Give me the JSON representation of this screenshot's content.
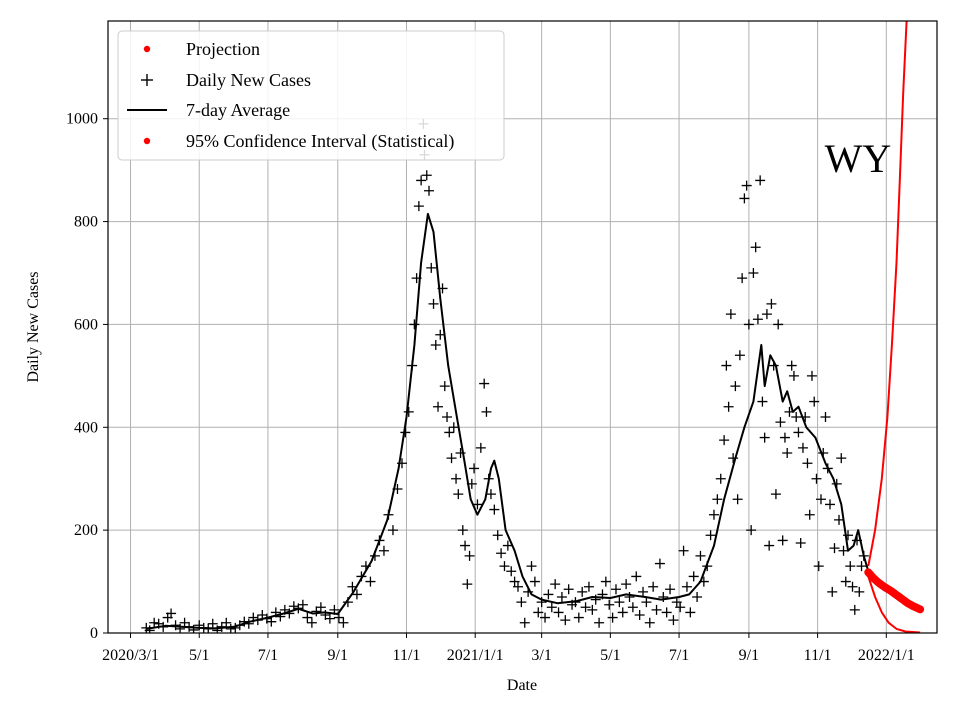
{
  "chart_data": {
    "type": "line",
    "state_label": "WY",
    "xlabel": "Date",
    "ylabel": "Daily New Cases",
    "x_ticks": [
      "2020-03-01",
      "2020-05-01",
      "2020-07-01",
      "2020-09-01",
      "2020-11-01",
      "2021-01-01",
      "2021-03-01",
      "2021-05-01",
      "2021-07-01",
      "2021-09-01",
      "2021-11-01",
      "2022-01-01"
    ],
    "x_tick_labels": [
      "2020/3/1",
      "5/1",
      "7/1",
      "9/1",
      "11/1",
      "2021/1/1",
      "3/1",
      "5/1",
      "7/1",
      "9/1",
      "11/1",
      "2022/1/1"
    ],
    "y_ticks": [
      0,
      200,
      400,
      600,
      800,
      1000
    ],
    "xlim": [
      "2020-02-10",
      "2022-02-15"
    ],
    "ylim": [
      0,
      1190
    ],
    "grid": true,
    "legend_position": "top-left",
    "legend": [
      {
        "label": "Projection",
        "marker": "dot",
        "color": "#ff0000"
      },
      {
        "label": "Daily New Cases",
        "marker": "plus",
        "color": "#000000"
      },
      {
        "label": "7-day Average",
        "marker": "line",
        "color": "#000000"
      },
      {
        "label": "95% Confidence Interval (Statistical)",
        "marker": "dot",
        "color": "#ff0000"
      }
    ],
    "series": [
      {
        "name": "7-day Average",
        "color": "#000000",
        "points": [
          [
            "2020-03-15",
            8
          ],
          [
            "2020-04-01",
            14
          ],
          [
            "2020-04-15",
            12
          ],
          [
            "2020-05-01",
            10
          ],
          [
            "2020-05-15",
            9
          ],
          [
            "2020-06-01",
            12
          ],
          [
            "2020-06-15",
            22
          ],
          [
            "2020-07-01",
            30
          ],
          [
            "2020-07-15",
            38
          ],
          [
            "2020-07-28",
            47
          ],
          [
            "2020-08-10",
            38
          ],
          [
            "2020-08-20",
            40
          ],
          [
            "2020-09-01",
            37
          ],
          [
            "2020-09-15",
            80
          ],
          [
            "2020-10-01",
            140
          ],
          [
            "2020-10-15",
            220
          ],
          [
            "2020-10-25",
            320
          ],
          [
            "2020-11-01",
            420
          ],
          [
            "2020-11-08",
            560
          ],
          [
            "2020-11-14",
            720
          ],
          [
            "2020-11-20",
            815
          ],
          [
            "2020-11-25",
            780
          ],
          [
            "2020-12-01",
            650
          ],
          [
            "2020-12-08",
            520
          ],
          [
            "2020-12-15",
            430
          ],
          [
            "2020-12-22",
            340
          ],
          [
            "2020-12-28",
            260
          ],
          [
            "2021-01-03",
            230
          ],
          [
            "2021-01-10",
            260
          ],
          [
            "2021-01-15",
            320
          ],
          [
            "2021-01-18",
            335
          ],
          [
            "2021-01-22",
            300
          ],
          [
            "2021-01-28",
            200
          ],
          [
            "2021-02-05",
            160
          ],
          [
            "2021-02-12",
            110
          ],
          [
            "2021-02-20",
            75
          ],
          [
            "2021-03-01",
            65
          ],
          [
            "2021-03-15",
            58
          ],
          [
            "2021-04-01",
            62
          ],
          [
            "2021-04-15",
            70
          ],
          [
            "2021-05-01",
            68
          ],
          [
            "2021-05-15",
            75
          ],
          [
            "2021-06-01",
            70
          ],
          [
            "2021-06-15",
            65
          ],
          [
            "2021-07-01",
            70
          ],
          [
            "2021-07-10",
            75
          ],
          [
            "2021-07-20",
            100
          ],
          [
            "2021-08-01",
            170
          ],
          [
            "2021-08-10",
            260
          ],
          [
            "2021-08-20",
            340
          ],
          [
            "2021-08-28",
            400
          ],
          [
            "2021-09-05",
            450
          ],
          [
            "2021-09-12",
            560
          ],
          [
            "2021-09-15",
            480
          ],
          [
            "2021-09-20",
            540
          ],
          [
            "2021-09-25",
            520
          ],
          [
            "2021-10-01",
            450
          ],
          [
            "2021-10-05",
            470
          ],
          [
            "2021-10-10",
            430
          ],
          [
            "2021-10-15",
            440
          ],
          [
            "2021-10-22",
            400
          ],
          [
            "2021-10-30",
            380
          ],
          [
            "2021-11-08",
            330
          ],
          [
            "2021-11-15",
            300
          ],
          [
            "2021-11-22",
            250
          ],
          [
            "2021-11-28",
            160
          ],
          [
            "2021-12-03",
            170
          ],
          [
            "2021-12-07",
            200
          ],
          [
            "2021-12-12",
            150
          ],
          [
            "2021-12-16",
            120
          ]
        ]
      },
      {
        "name": "Projection",
        "color": "#ff0000",
        "points": [
          [
            "2021-12-16",
            118
          ],
          [
            "2021-12-20",
            108
          ],
          [
            "2021-12-25",
            98
          ],
          [
            "2021-12-30",
            90
          ],
          [
            "2022-01-05",
            82
          ],
          [
            "2022-01-10",
            74
          ],
          [
            "2022-01-15",
            66
          ],
          [
            "2022-01-20",
            58
          ],
          [
            "2022-01-25",
            52
          ],
          [
            "2022-01-31",
            46
          ]
        ]
      },
      {
        "name": "95% Confidence Interval (Statistical) upper",
        "color": "#ff0000",
        "points": [
          [
            "2021-12-16",
            130
          ],
          [
            "2021-12-22",
            200
          ],
          [
            "2021-12-28",
            300
          ],
          [
            "2022-01-02",
            420
          ],
          [
            "2022-01-06",
            560
          ],
          [
            "2022-01-10",
            720
          ],
          [
            "2022-01-13",
            880
          ],
          [
            "2022-01-16",
            1050
          ],
          [
            "2022-01-19",
            1190
          ]
        ]
      },
      {
        "name": "95% Confidence Interval (Statistical) lower",
        "color": "#ff0000",
        "points": [
          [
            "2021-12-16",
            110
          ],
          [
            "2021-12-22",
            70
          ],
          [
            "2021-12-28",
            40
          ],
          [
            "2022-01-03",
            20
          ],
          [
            "2022-01-10",
            8
          ],
          [
            "2022-01-18",
            3
          ],
          [
            "2022-01-31",
            1
          ]
        ]
      }
    ],
    "daily_cases": [
      [
        "2020-03-15",
        10
      ],
      [
        "2020-03-18",
        5
      ],
      [
        "2020-03-22",
        20
      ],
      [
        "2020-03-26",
        18
      ],
      [
        "2020-03-30",
        12
      ],
      [
        "2020-04-03",
        30
      ],
      [
        "2020-04-06",
        38
      ],
      [
        "2020-04-10",
        15
      ],
      [
        "2020-04-14",
        8
      ],
      [
        "2020-04-18",
        20
      ],
      [
        "2020-04-22",
        12
      ],
      [
        "2020-04-26",
        6
      ],
      [
        "2020-05-01",
        15
      ],
      [
        "2020-05-05",
        10
      ],
      [
        "2020-05-09",
        8
      ],
      [
        "2020-05-13",
        18
      ],
      [
        "2020-05-17",
        5
      ],
      [
        "2020-05-21",
        12
      ],
      [
        "2020-05-25",
        20
      ],
      [
        "2020-05-29",
        8
      ],
      [
        "2020-06-02",
        10
      ],
      [
        "2020-06-06",
        15
      ],
      [
        "2020-06-10",
        22
      ],
      [
        "2020-06-14",
        18
      ],
      [
        "2020-06-18",
        30
      ],
      [
        "2020-06-22",
        25
      ],
      [
        "2020-06-26",
        35
      ],
      [
        "2020-06-30",
        28
      ],
      [
        "2020-07-04",
        22
      ],
      [
        "2020-07-08",
        40
      ],
      [
        "2020-07-12",
        32
      ],
      [
        "2020-07-16",
        45
      ],
      [
        "2020-07-20",
        38
      ],
      [
        "2020-07-24",
        52
      ],
      [
        "2020-07-28",
        48
      ],
      [
        "2020-08-01",
        55
      ],
      [
        "2020-08-05",
        30
      ],
      [
        "2020-08-09",
        20
      ],
      [
        "2020-08-13",
        42
      ],
      [
        "2020-08-17",
        50
      ],
      [
        "2020-08-21",
        35
      ],
      [
        "2020-08-25",
        28
      ],
      [
        "2020-08-29",
        45
      ],
      [
        "2020-09-02",
        30
      ],
      [
        "2020-09-06",
        20
      ],
      [
        "2020-09-10",
        60
      ],
      [
        "2020-09-14",
        90
      ],
      [
        "2020-09-18",
        75
      ],
      [
        "2020-09-22",
        110
      ],
      [
        "2020-09-26",
        130
      ],
      [
        "2020-09-30",
        100
      ],
      [
        "2020-10-04",
        150
      ],
      [
        "2020-10-08",
        180
      ],
      [
        "2020-10-12",
        160
      ],
      [
        "2020-10-16",
        230
      ],
      [
        "2020-10-20",
        200
      ],
      [
        "2020-10-24",
        280
      ],
      [
        "2020-10-28",
        330
      ],
      [
        "2020-10-31",
        390
      ],
      [
        "2020-11-03",
        430
      ],
      [
        "2020-11-06",
        520
      ],
      [
        "2020-11-08",
        600
      ],
      [
        "2020-11-10",
        690
      ],
      [
        "2020-11-12",
        830
      ],
      [
        "2020-11-14",
        880
      ],
      [
        "2020-11-16",
        990
      ],
      [
        "2020-11-17",
        930
      ],
      [
        "2020-11-19",
        890
      ],
      [
        "2020-11-21",
        860
      ],
      [
        "2020-11-23",
        710
      ],
      [
        "2020-11-25",
        640
      ],
      [
        "2020-11-27",
        560
      ],
      [
        "2020-11-29",
        440
      ],
      [
        "2020-12-01",
        580
      ],
      [
        "2020-12-03",
        670
      ],
      [
        "2020-12-05",
        480
      ],
      [
        "2020-12-07",
        420
      ],
      [
        "2020-12-09",
        390
      ],
      [
        "2020-12-11",
        340
      ],
      [
        "2020-12-13",
        400
      ],
      [
        "2020-12-15",
        300
      ],
      [
        "2020-12-17",
        270
      ],
      [
        "2020-12-19",
        350
      ],
      [
        "2020-12-21",
        200
      ],
      [
        "2020-12-23",
        170
      ],
      [
        "2020-12-25",
        95
      ],
      [
        "2020-12-27",
        150
      ],
      [
        "2020-12-29",
        290
      ],
      [
        "2020-12-31",
        320
      ],
      [
        "2021-01-03",
        250
      ],
      [
        "2021-01-06",
        360
      ],
      [
        "2021-01-09",
        485
      ],
      [
        "2021-01-11",
        430
      ],
      [
        "2021-01-13",
        300
      ],
      [
        "2021-01-15",
        270
      ],
      [
        "2021-01-18",
        240
      ],
      [
        "2021-01-21",
        190
      ],
      [
        "2021-01-24",
        155
      ],
      [
        "2021-01-27",
        130
      ],
      [
        "2021-01-30",
        170
      ],
      [
        "2021-02-02",
        120
      ],
      [
        "2021-02-05",
        100
      ],
      [
        "2021-02-08",
        90
      ],
      [
        "2021-02-11",
        60
      ],
      [
        "2021-02-14",
        20
      ],
      [
        "2021-02-17",
        80
      ],
      [
        "2021-02-20",
        130
      ],
      [
        "2021-02-23",
        100
      ],
      [
        "2021-02-26",
        40
      ],
      [
        "2021-03-01",
        60
      ],
      [
        "2021-03-04",
        30
      ],
      [
        "2021-03-07",
        75
      ],
      [
        "2021-03-10",
        50
      ],
      [
        "2021-03-13",
        95
      ],
      [
        "2021-03-16",
        40
      ],
      [
        "2021-03-19",
        70
      ],
      [
        "2021-03-22",
        25
      ],
      [
        "2021-03-25",
        85
      ],
      [
        "2021-03-28",
        55
      ],
      [
        "2021-03-31",
        60
      ],
      [
        "2021-04-03",
        30
      ],
      [
        "2021-04-06",
        80
      ],
      [
        "2021-04-09",
        50
      ],
      [
        "2021-04-12",
        90
      ],
      [
        "2021-04-15",
        45
      ],
      [
        "2021-04-18",
        65
      ],
      [
        "2021-04-21",
        20
      ],
      [
        "2021-04-24",
        75
      ],
      [
        "2021-04-27",
        100
      ],
      [
        "2021-04-30",
        55
      ],
      [
        "2021-05-03",
        30
      ],
      [
        "2021-05-06",
        85
      ],
      [
        "2021-05-09",
        60
      ],
      [
        "2021-05-12",
        40
      ],
      [
        "2021-05-15",
        95
      ],
      [
        "2021-05-18",
        70
      ],
      [
        "2021-05-21",
        50
      ],
      [
        "2021-05-24",
        110
      ],
      [
        "2021-05-27",
        35
      ],
      [
        "2021-05-30",
        80
      ],
      [
        "2021-06-02",
        60
      ],
      [
        "2021-06-05",
        20
      ],
      [
        "2021-06-08",
        90
      ],
      [
        "2021-06-11",
        45
      ],
      [
        "2021-06-14",
        135
      ],
      [
        "2021-06-17",
        70
      ],
      [
        "2021-06-20",
        40
      ],
      [
        "2021-06-23",
        85
      ],
      [
        "2021-06-26",
        25
      ],
      [
        "2021-06-29",
        60
      ],
      [
        "2021-07-02",
        50
      ],
      [
        "2021-07-05",
        160
      ],
      [
        "2021-07-08",
        90
      ],
      [
        "2021-07-11",
        40
      ],
      [
        "2021-07-14",
        110
      ],
      [
        "2021-07-17",
        70
      ],
      [
        "2021-07-20",
        150
      ],
      [
        "2021-07-23",
        100
      ],
      [
        "2021-07-26",
        130
      ],
      [
        "2021-07-29",
        190
      ],
      [
        "2021-08-01",
        230
      ],
      [
        "2021-08-04",
        260
      ],
      [
        "2021-08-07",
        300
      ],
      [
        "2021-08-10",
        375
      ],
      [
        "2021-08-12",
        520
      ],
      [
        "2021-08-14",
        440
      ],
      [
        "2021-08-16",
        620
      ],
      [
        "2021-08-18",
        340
      ],
      [
        "2021-08-20",
        480
      ],
      [
        "2021-08-22",
        260
      ],
      [
        "2021-08-24",
        540
      ],
      [
        "2021-08-26",
        690
      ],
      [
        "2021-08-28",
        845
      ],
      [
        "2021-08-30",
        870
      ],
      [
        "2021-09-01",
        600
      ],
      [
        "2021-09-03",
        200
      ],
      [
        "2021-09-05",
        700
      ],
      [
        "2021-09-07",
        750
      ],
      [
        "2021-09-09",
        610
      ],
      [
        "2021-09-11",
        880
      ],
      [
        "2021-09-13",
        450
      ],
      [
        "2021-09-15",
        380
      ],
      [
        "2021-09-17",
        620
      ],
      [
        "2021-09-19",
        170
      ],
      [
        "2021-09-21",
        640
      ],
      [
        "2021-09-23",
        520
      ],
      [
        "2021-09-25",
        270
      ],
      [
        "2021-09-27",
        600
      ],
      [
        "2021-09-29",
        410
      ],
      [
        "2021-10-01",
        180
      ],
      [
        "2021-10-03",
        380
      ],
      [
        "2021-10-05",
        350
      ],
      [
        "2021-10-07",
        430
      ],
      [
        "2021-10-09",
        520
      ],
      [
        "2021-10-11",
        500
      ],
      [
        "2021-10-13",
        420
      ],
      [
        "2021-10-15",
        390
      ],
      [
        "2021-10-17",
        175
      ],
      [
        "2021-10-19",
        360
      ],
      [
        "2021-10-21",
        420
      ],
      [
        "2021-10-23",
        330
      ],
      [
        "2021-10-25",
        230
      ],
      [
        "2021-10-27",
        500
      ],
      [
        "2021-10-29",
        450
      ],
      [
        "2021-10-31",
        300
      ],
      [
        "2021-11-02",
        130
      ],
      [
        "2021-11-04",
        260
      ],
      [
        "2021-11-06",
        350
      ],
      [
        "2021-11-08",
        420
      ],
      [
        "2021-11-10",
        320
      ],
      [
        "2021-11-12",
        250
      ],
      [
        "2021-11-14",
        80
      ],
      [
        "2021-11-16",
        165
      ],
      [
        "2021-11-18",
        290
      ],
      [
        "2021-11-20",
        220
      ],
      [
        "2021-11-22",
        340
      ],
      [
        "2021-11-24",
        160
      ],
      [
        "2021-11-26",
        100
      ],
      [
        "2021-11-28",
        190
      ],
      [
        "2021-11-30",
        130
      ],
      [
        "2021-12-02",
        90
      ],
      [
        "2021-12-04",
        45
      ],
      [
        "2021-12-06",
        180
      ],
      [
        "2021-12-08",
        80
      ],
      [
        "2021-12-10",
        130
      ],
      [
        "2021-12-12",
        150
      ]
    ]
  }
}
